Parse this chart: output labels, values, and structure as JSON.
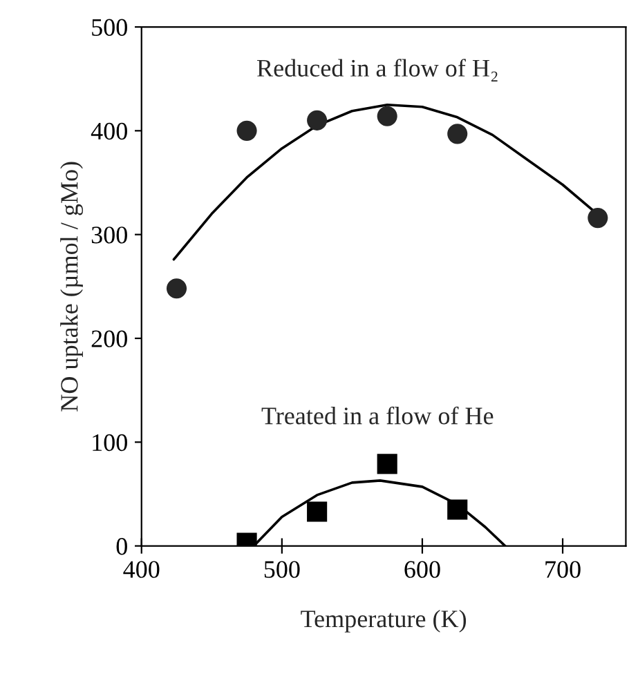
{
  "chart_data": {
    "type": "scatter",
    "xlabel": "Temperature (K)",
    "ylabel": "NO uptake (µmol / gMo)",
    "xlim": [
      400,
      745
    ],
    "ylim": [
      0,
      500
    ],
    "xticks": [
      400,
      500,
      600,
      700
    ],
    "yticks": [
      0,
      100,
      200,
      300,
      400,
      500
    ],
    "grid": false,
    "legend": false,
    "series": [
      {
        "name": "Reduced in a flow of H₂",
        "marker": "circle",
        "color": "#262626",
        "x": [
          425,
          475,
          525,
          575,
          625,
          725
        ],
        "values": [
          248,
          400,
          410,
          414,
          397,
          316
        ]
      },
      {
        "name": "Treated in a flow of He",
        "marker": "square",
        "color": "#000000",
        "x": [
          475,
          525,
          575,
          625
        ],
        "values": [
          3,
          33,
          79,
          35
        ]
      },
      {
        "type": "line",
        "marker": "none",
        "line_style": "solid",
        "color": "#000000",
        "x": [
          423,
          450,
          475,
          500,
          525,
          550,
          575,
          600,
          625,
          650,
          675,
          700,
          721
        ],
        "values": [
          276,
          320,
          355,
          383,
          405,
          419,
          425,
          423,
          413,
          396,
          372,
          348,
          324
        ]
      },
      {
        "type": "line",
        "marker": "none",
        "line_style": "solid",
        "color": "#000000",
        "x": [
          480,
          500,
          525,
          550,
          570,
          600,
          625,
          645,
          659
        ],
        "values": [
          0,
          28,
          49,
          61,
          63,
          57,
          40,
          18,
          0
        ]
      }
    ]
  }
}
